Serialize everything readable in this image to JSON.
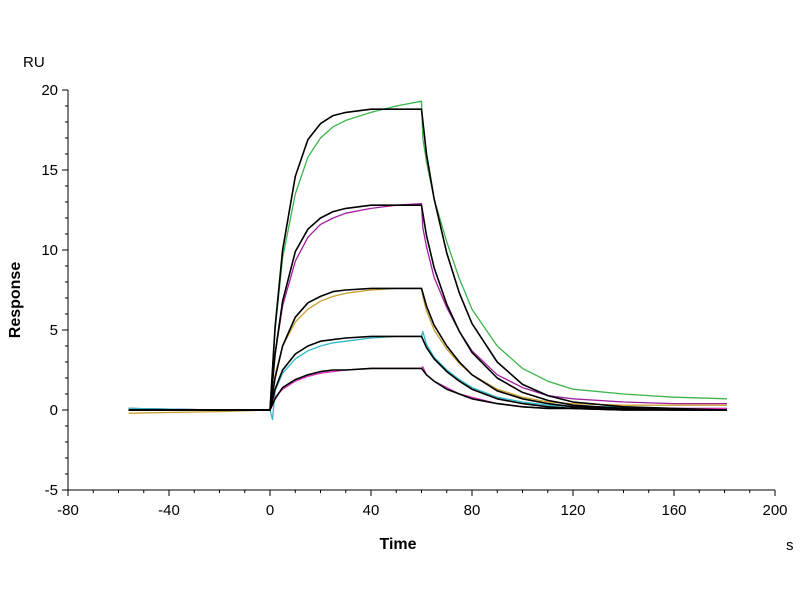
{
  "chart_data": {
    "type": "line",
    "title": "",
    "xlabel": "Time",
    "ylabel": "Response",
    "x_unit": "s",
    "y_unit": "RU",
    "xlim": [
      -80,
      200
    ],
    "ylim": [
      -5,
      20
    ],
    "x_ticks": [
      "-80",
      "-40",
      "0",
      "40",
      "80",
      "120",
      "160",
      "200"
    ],
    "y_ticks": [
      "-5",
      "0",
      "5",
      "10",
      "15",
      "20"
    ],
    "legend": "none",
    "grid": false,
    "series": [
      {
        "color": "#3cb44b",
        "kind": "measured",
        "x": [
          -56,
          -20,
          0,
          2,
          5,
          10,
          15,
          20,
          25,
          30,
          40,
          50,
          60,
          60.5,
          62,
          65,
          70,
          75,
          80,
          90,
          100,
          110,
          120,
          140,
          160,
          181
        ],
        "y": [
          0.1,
          0,
          0,
          5,
          9.5,
          13.5,
          15.8,
          17,
          17.7,
          18.1,
          18.6,
          19,
          19.3,
          17,
          15.5,
          13.2,
          10.5,
          8.2,
          6.3,
          4,
          2.6,
          1.8,
          1.3,
          1,
          0.8,
          0.7
        ]
      },
      {
        "color": "#a020a0",
        "kind": "measured",
        "x": [
          -56,
          -20,
          0,
          2,
          5,
          10,
          15,
          20,
          25,
          30,
          40,
          50,
          60,
          60.5,
          62,
          65,
          70,
          75,
          80,
          90,
          100,
          110,
          120,
          140,
          160,
          181
        ],
        "y": [
          0.1,
          0,
          0,
          3.5,
          6.5,
          9.3,
          10.8,
          11.6,
          12,
          12.3,
          12.6,
          12.8,
          12.9,
          11.4,
          10.2,
          8.3,
          6.4,
          4.9,
          3.7,
          2.2,
          1.4,
          0.9,
          0.7,
          0.5,
          0.4,
          0.4
        ]
      },
      {
        "color": "#c8a030",
        "kind": "measured",
        "x": [
          -56,
          -20,
          0,
          2,
          5,
          10,
          15,
          20,
          25,
          30,
          40,
          50,
          60,
          60.5,
          62,
          65,
          70,
          75,
          80,
          90,
          100,
          110,
          120,
          140,
          160,
          181
        ],
        "y": [
          -0.2,
          -0.1,
          0,
          2.2,
          4,
          5.5,
          6.3,
          6.8,
          7.1,
          7.3,
          7.5,
          7.6,
          7.6,
          7.1,
          6.2,
          5,
          3.8,
          2.9,
          2.2,
          1.3,
          0.8,
          0.5,
          0.4,
          0.3,
          0.3,
          0.3
        ]
      },
      {
        "color": "#30b8c8",
        "kind": "measured",
        "x": [
          -56,
          -20,
          0,
          1,
          2,
          5,
          10,
          15,
          20,
          25,
          30,
          40,
          50,
          60,
          60.5,
          62,
          65,
          70,
          75,
          80,
          90,
          100,
          110,
          120,
          140,
          160,
          181
        ],
        "y": [
          0.1,
          0,
          0,
          -0.6,
          1.2,
          2.3,
          3.2,
          3.7,
          4,
          4.2,
          4.3,
          4.5,
          4.6,
          4.6,
          4.9,
          4.1,
          3.3,
          2.5,
          1.9,
          1.4,
          0.8,
          0.5,
          0.3,
          0.2,
          0.2,
          0.1,
          0.1
        ]
      },
      {
        "color": "#e030c0",
        "kind": "measured",
        "x": [
          -56,
          -20,
          0,
          2,
          5,
          10,
          15,
          20,
          25,
          30,
          40,
          50,
          60,
          60.5,
          62,
          65,
          70,
          75,
          80,
          90,
          100,
          110,
          120,
          140,
          160,
          181
        ],
        "y": [
          0,
          0,
          0,
          0.8,
          1.3,
          1.8,
          2.1,
          2.3,
          2.4,
          2.5,
          2.6,
          2.6,
          2.6,
          2.7,
          2.2,
          1.8,
          1.4,
          1,
          0.8,
          0.4,
          0.2,
          0.1,
          0.1,
          0.1,
          0.1,
          0.1
        ]
      },
      {
        "color": "#000000",
        "kind": "fit",
        "x": [
          -56,
          -20,
          0,
          2,
          5,
          10,
          15,
          20,
          25,
          30,
          35,
          40,
          50,
          60,
          62,
          65,
          70,
          75,
          80,
          90,
          100,
          110,
          120,
          140,
          160,
          181
        ],
        "y": [
          0,
          0,
          0,
          5.2,
          10,
          14.6,
          16.9,
          17.9,
          18.4,
          18.6,
          18.7,
          18.8,
          18.8,
          18.8,
          16,
          13.2,
          9.8,
          7.3,
          5.4,
          3,
          1.6,
          0.9,
          0.5,
          0.2,
          0.1,
          0
        ]
      },
      {
        "color": "#000000",
        "kind": "fit",
        "x": [
          -56,
          -20,
          0,
          2,
          5,
          10,
          15,
          20,
          25,
          30,
          40,
          50,
          60,
          62,
          65,
          70,
          75,
          80,
          90,
          100,
          110,
          120,
          140,
          160,
          181
        ],
        "y": [
          0,
          0,
          0,
          3.5,
          6.8,
          9.9,
          11.3,
          12,
          12.4,
          12.6,
          12.8,
          12.8,
          12.8,
          10.9,
          8.9,
          6.6,
          4.9,
          3.6,
          2,
          1.1,
          0.6,
          0.3,
          0.1,
          0,
          0
        ]
      },
      {
        "color": "#000000",
        "kind": "fit",
        "x": [
          -56,
          -20,
          0,
          2,
          5,
          10,
          15,
          20,
          25,
          30,
          40,
          50,
          60,
          62,
          65,
          70,
          75,
          80,
          90,
          100,
          110,
          120,
          140,
          160,
          181
        ],
        "y": [
          0,
          0,
          0,
          2,
          4,
          5.8,
          6.7,
          7.1,
          7.4,
          7.5,
          7.6,
          7.6,
          7.6,
          6.5,
          5.3,
          4,
          3,
          2.2,
          1.2,
          0.7,
          0.4,
          0.2,
          0.1,
          0,
          0
        ]
      },
      {
        "color": "#000000",
        "kind": "fit",
        "x": [
          -56,
          -20,
          0,
          2,
          5,
          10,
          15,
          20,
          25,
          30,
          40,
          50,
          60,
          62,
          65,
          70,
          75,
          80,
          90,
          100,
          110,
          120,
          140,
          160,
          181
        ],
        "y": [
          0,
          0,
          0,
          1.3,
          2.5,
          3.5,
          4,
          4.3,
          4.4,
          4.5,
          4.6,
          4.6,
          4.6,
          3.9,
          3.2,
          2.4,
          1.8,
          1.3,
          0.7,
          0.4,
          0.2,
          0.1,
          0,
          0,
          0
        ]
      },
      {
        "color": "#000000",
        "kind": "fit",
        "x": [
          -56,
          -20,
          0,
          2,
          5,
          10,
          15,
          20,
          25,
          30,
          40,
          50,
          60,
          62,
          65,
          70,
          75,
          80,
          90,
          100,
          110,
          120,
          140,
          160,
          181
        ],
        "y": [
          0,
          0,
          0,
          0.7,
          1.4,
          1.9,
          2.2,
          2.4,
          2.5,
          2.5,
          2.6,
          2.6,
          2.6,
          2.2,
          1.8,
          1.3,
          1,
          0.7,
          0.4,
          0.2,
          0.1,
          0.1,
          0,
          0,
          0
        ]
      }
    ]
  }
}
